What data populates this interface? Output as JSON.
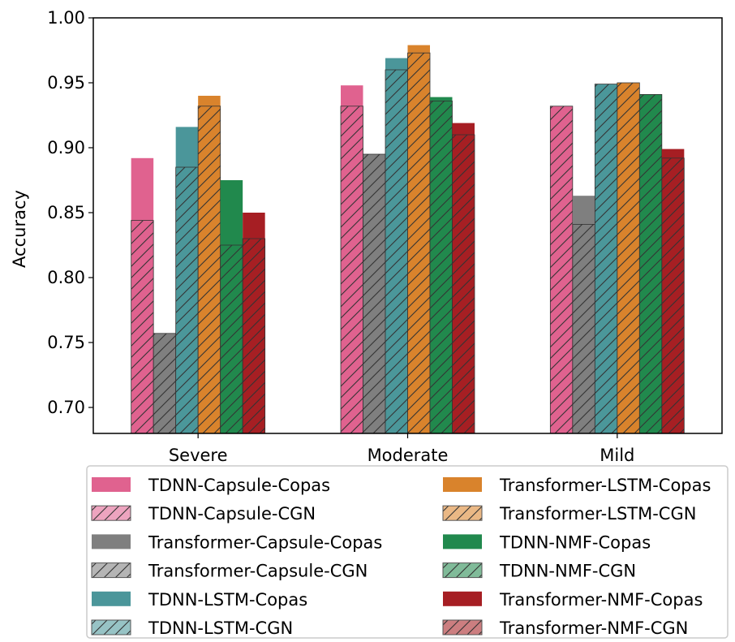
{
  "chart_data": {
    "type": "bar",
    "title": "",
    "xlabel": "",
    "ylabel": "Accuracy",
    "ylim": [
      0.68,
      1.0
    ],
    "yticks": [
      "0.70",
      "0.75",
      "0.80",
      "0.85",
      "0.90",
      "0.95",
      "1.00"
    ],
    "categories": [
      "Severe",
      "Moderate",
      "Mild"
    ],
    "grid": false,
    "legend_position": "bottom",
    "series": [
      {
        "name": "TDNN-Capsule-Copas",
        "color": "#e0628f",
        "hatched": false,
        "values": [
          0.892,
          0.948,
          0.923
        ]
      },
      {
        "name": "TDNN-Capsule-CGN",
        "color": "#e0628f",
        "hatched": true,
        "values": [
          0.844,
          0.932,
          0.932
        ]
      },
      {
        "name": "Transformer-Capsule-Copas",
        "color": "#7f7f7f",
        "hatched": false,
        "values": [
          0.709,
          0.863,
          0.863
        ]
      },
      {
        "name": "Transformer-Capsule-CGN",
        "color": "#7f7f7f",
        "hatched": true,
        "values": [
          0.757,
          0.895,
          0.841
        ]
      },
      {
        "name": "TDNN-LSTM-Copas",
        "color": "#4b969a",
        "hatched": false,
        "values": [
          0.916,
          0.969,
          0.949
        ]
      },
      {
        "name": "TDNN-LSTM-CGN",
        "color": "#4b969a",
        "hatched": true,
        "values": [
          0.885,
          0.96,
          0.949
        ]
      },
      {
        "name": "Transformer-LSTM-Copas",
        "color": "#d9832c",
        "hatched": false,
        "values": [
          0.94,
          0.979,
          0.946
        ]
      },
      {
        "name": "Transformer-LSTM-CGN",
        "color": "#d9832c",
        "hatched": true,
        "values": [
          0.932,
          0.973,
          0.95
        ]
      },
      {
        "name": "TDNN-NMF-Copas",
        "color": "#21894d",
        "hatched": false,
        "values": [
          0.875,
          0.939,
          0.915
        ]
      },
      {
        "name": "TDNN-NMF-CGN",
        "color": "#21894d",
        "hatched": true,
        "values": [
          0.825,
          0.936,
          0.941
        ]
      },
      {
        "name": "Transformer-NMF-Copas",
        "color": "#a61e23",
        "hatched": false,
        "values": [
          0.85,
          0.919,
          0.899
        ]
      },
      {
        "name": "Transformer-NMF-CGN",
        "color": "#a61e23",
        "hatched": true,
        "values": [
          0.83,
          0.91,
          0.892
        ]
      }
    ]
  }
}
